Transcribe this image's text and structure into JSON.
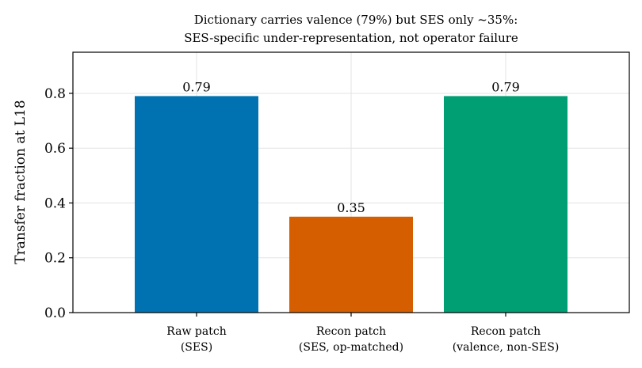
{
  "chart_data": {
    "type": "bar",
    "title": [
      "Dictionary carries valence (79%) but SES only ~35%:",
      "SES-specific under-representation, not operator failure"
    ],
    "xlabel": "",
    "ylabel": "Transfer fraction at L18",
    "ylim": [
      0,
      0.95
    ],
    "yticks": [
      0.0,
      0.2,
      0.4,
      0.6,
      0.8
    ],
    "ytick_labels": [
      "0.0",
      "0.2",
      "0.4",
      "0.6",
      "0.8"
    ],
    "grid": true,
    "categories": [
      [
        "Raw patch",
        "(SES)"
      ],
      [
        "Recon patch",
        "(SES, op-matched)"
      ],
      [
        "Recon patch",
        "(valence, non-SES)"
      ]
    ],
    "values": [
      0.79,
      0.35,
      0.79
    ],
    "value_labels": [
      "0.79",
      "0.35",
      "0.79"
    ],
    "colors": [
      "#0072b2",
      "#d55e00",
      "#009e73"
    ]
  }
}
